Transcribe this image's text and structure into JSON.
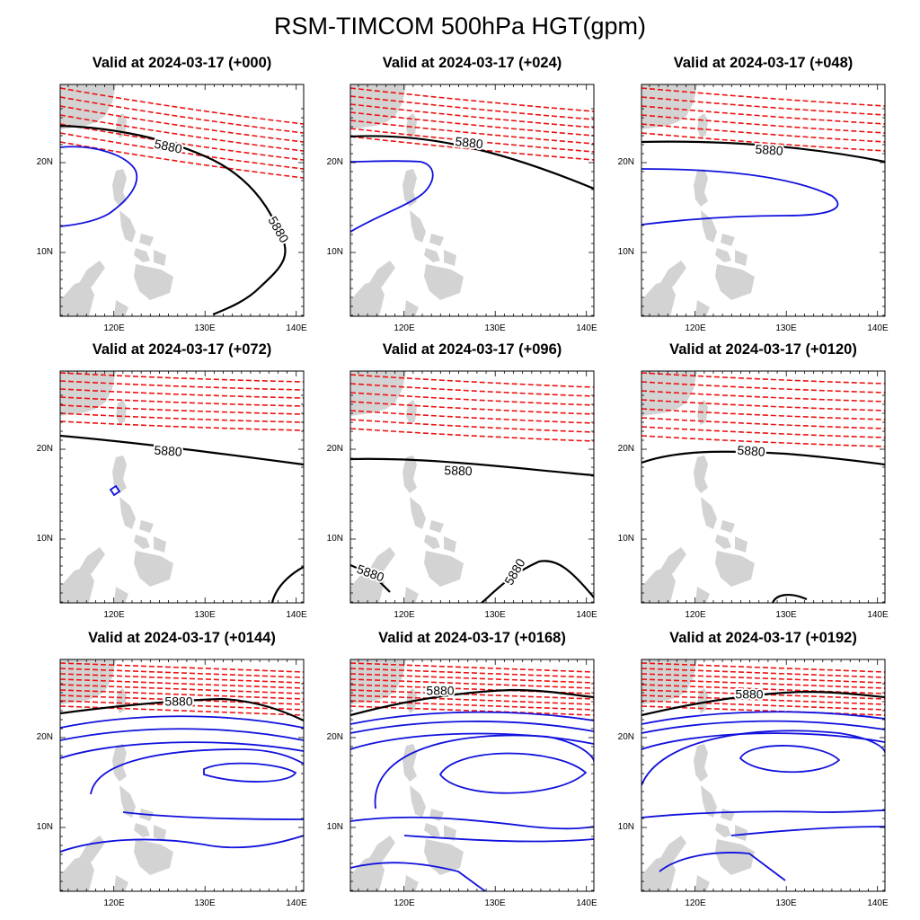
{
  "figure": {
    "title": "RSM-TIMCOM 500hPa HGT(gpm)",
    "contour_label": "5880",
    "colors": {
      "high": "#ee1111",
      "ref": "#000000",
      "low": "#1111dd",
      "land": "#d3d3d3"
    }
  },
  "axes": {
    "lon_ticks": [
      "120E",
      "130E",
      "140E"
    ],
    "lat_ticks": [
      "20N",
      "10N"
    ]
  },
  "panels": [
    {
      "title": "Valid at 2024-03-17 (+000)"
    },
    {
      "title": "Valid at 2024-03-17 (+024)"
    },
    {
      "title": "Valid at 2024-03-17 (+048)"
    },
    {
      "title": "Valid at 2024-03-17 (+072)"
    },
    {
      "title": "Valid at 2024-03-17 (+096)"
    },
    {
      "title": "Valid at 2024-03-17 (+0120)"
    },
    {
      "title": "Valid at 2024-03-17 (+0144)"
    },
    {
      "title": "Valid at 2024-03-17 (+0168)"
    },
    {
      "title": "Valid at 2024-03-17 (+0192)"
    }
  ]
}
